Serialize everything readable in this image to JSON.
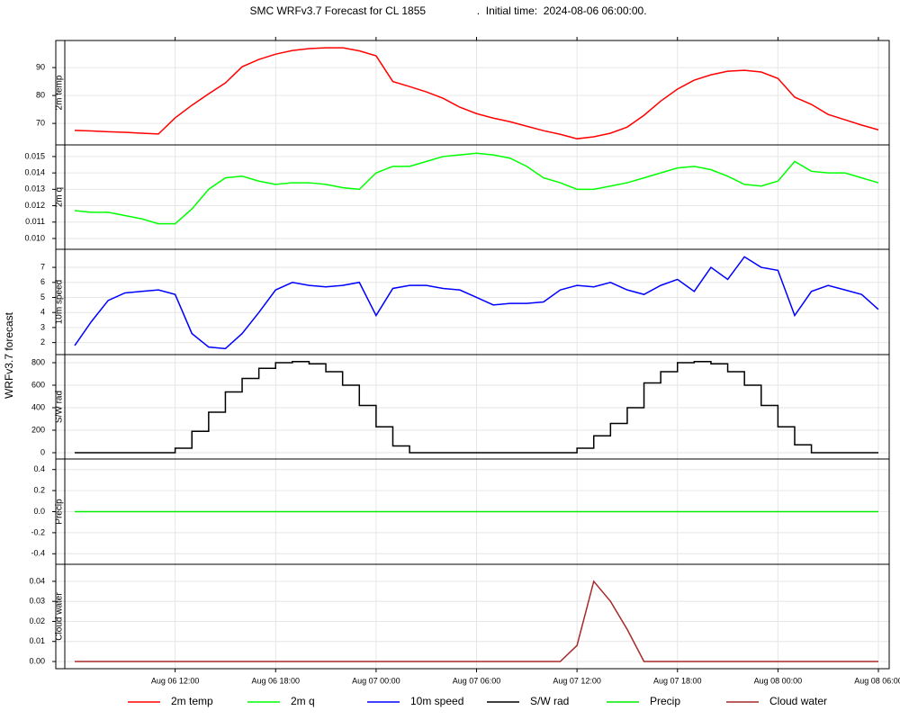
{
  "title": "SMC WRFv3.7 Forecast for CL 1855                 .  Initial time:  2024-08-06 06:00:00.",
  "ylabel": "WRFv3.7 forecast",
  "chart_data": {
    "type": "line",
    "grid": true,
    "xlim": [
      "Aug 06 06:00",
      "Aug 08 06:00"
    ],
    "xticks": [
      "Aug 06 12:00",
      "Aug 06 18:00",
      "Aug 07 00:00",
      "Aug 07 06:00",
      "Aug 07 12:00",
      "Aug 07 18:00",
      "Aug 08 00:00",
      "Aug 08 06:00"
    ],
    "x": [
      "Aug 06 06:00",
      "Aug 06 07:00",
      "Aug 06 08:00",
      "Aug 06 09:00",
      "Aug 06 10:00",
      "Aug 06 11:00",
      "Aug 06 12:00",
      "Aug 06 13:00",
      "Aug 06 14:00",
      "Aug 06 15:00",
      "Aug 06 16:00",
      "Aug 06 17:00",
      "Aug 06 18:00",
      "Aug 06 19:00",
      "Aug 06 20:00",
      "Aug 06 21:00",
      "Aug 06 22:00",
      "Aug 06 23:00",
      "Aug 07 00:00",
      "Aug 07 01:00",
      "Aug 07 02:00",
      "Aug 07 03:00",
      "Aug 07 04:00",
      "Aug 07 05:00",
      "Aug 07 06:00",
      "Aug 07 07:00",
      "Aug 07 08:00",
      "Aug 07 09:00",
      "Aug 07 10:00",
      "Aug 07 11:00",
      "Aug 07 12:00",
      "Aug 07 13:00",
      "Aug 07 14:00",
      "Aug 07 15:00",
      "Aug 07 16:00",
      "Aug 07 17:00",
      "Aug 07 18:00",
      "Aug 07 19:00",
      "Aug 07 20:00",
      "Aug 07 21:00",
      "Aug 07 22:00",
      "Aug 07 23:00",
      "Aug 08 00:00",
      "Aug 08 01:00",
      "Aug 08 02:00",
      "Aug 08 03:00",
      "Aug 08 04:00",
      "Aug 08 05:00",
      "Aug 08 06:00"
    ],
    "panels": [
      {
        "ylabel": "2m temp",
        "ylim": [
          62.3,
          99.7
        ],
        "yticks": [
          70,
          80,
          90
        ],
        "series": [
          {
            "name": "2m temp",
            "color": "#ff0000",
            "values": [
              67.5,
              67.3,
              67.0,
              66.8,
              66.5,
              66.2,
              72.0,
              76.5,
              80.6,
              84.5,
              90.3,
              92.9,
              94.8,
              96.1,
              96.8,
              97.1,
              97.1,
              96.0,
              94.2,
              85.0,
              83.2,
              81.3,
              79.0,
              75.8,
              73.5,
              71.9,
              70.6,
              69.0,
              67.4,
              66.1,
              64.5,
              65.2,
              66.5,
              68.7,
              72.9,
              78.0,
              82.3,
              85.5,
              87.4,
              88.7,
              89.0,
              88.4,
              86.1,
              79.4,
              76.8,
              73.2,
              71.3,
              69.4,
              67.7
            ]
          }
        ]
      },
      {
        "ylabel": "2m q",
        "ylim": [
          0.00934,
          0.01571
        ],
        "yticks": [
          {
            "value": 0.01,
            "label": "0.010"
          },
          {
            "value": 0.011,
            "label": "0.011"
          },
          {
            "value": 0.012,
            "label": "0.012"
          },
          {
            "value": 0.013,
            "label": "0.013"
          },
          {
            "value": 0.014,
            "label": "0.014"
          },
          {
            "value": 0.015,
            "label": "0.015"
          }
        ],
        "series": [
          {
            "name": "2m q",
            "color": "#00ff00",
            "values": [
              0.0117,
              0.0116,
              0.0116,
              0.0114,
              0.0112,
              0.0109,
              0.0109,
              0.0118,
              0.013,
              0.0137,
              0.0138,
              0.0135,
              0.0133,
              0.0134,
              0.0134,
              0.0133,
              0.0131,
              0.013,
              0.014,
              0.0144,
              0.0144,
              0.0147,
              0.015,
              0.0151,
              0.0152,
              0.0151,
              0.0149,
              0.0144,
              0.0137,
              0.0134,
              0.013,
              0.013,
              0.0132,
              0.0134,
              0.0137,
              0.014,
              0.0143,
              0.0144,
              0.0142,
              0.0138,
              0.0133,
              0.0132,
              0.0135,
              0.0147,
              0.0141,
              0.014,
              0.014,
              0.0137,
              0.0134
            ]
          }
        ]
      },
      {
        "ylabel": "10m speed",
        "ylim": [
          1.2,
          8.2
        ],
        "yticks": [
          2,
          3,
          4,
          5,
          6,
          7
        ],
        "series": [
          {
            "name": "10m speed",
            "color": "#0000ff",
            "values": [
              1.8,
              3.4,
              4.8,
              5.3,
              5.4,
              5.5,
              5.2,
              2.6,
              1.7,
              1.6,
              2.6,
              4.0,
              5.5,
              6.0,
              5.8,
              5.7,
              5.8,
              6.0,
              3.8,
              5.6,
              5.8,
              5.8,
              5.6,
              5.5,
              5.0,
              4.5,
              4.6,
              4.6,
              4.7,
              5.5,
              5.8,
              5.7,
              6.0,
              5.5,
              5.2,
              5.8,
              6.2,
              5.4,
              7.0,
              6.2,
              7.7,
              7.0,
              6.8,
              3.8,
              5.4,
              5.8,
              5.5,
              5.2,
              4.2
            ]
          }
        ]
      },
      {
        "ylabel": "S/W rad",
        "ylim": [
          -56,
          872
        ],
        "yticks": [
          0,
          200,
          400,
          600,
          800
        ],
        "series": [
          {
            "name": "S/W rad",
            "color": "#000000",
            "step": true,
            "values": [
              0,
              0,
              0,
              0,
              0,
              0,
              40,
              190,
              360,
              540,
              660,
              750,
              800,
              810,
              790,
              720,
              600,
              420,
              230,
              60,
              0,
              0,
              0,
              0,
              0,
              0,
              0,
              0,
              0,
              0,
              40,
              150,
              260,
              400,
              620,
              720,
              800,
              810,
              790,
              720,
              600,
              420,
              230,
              70,
              0,
              0,
              0,
              0,
              0
            ]
          }
        ]
      },
      {
        "ylabel": "Precip",
        "ylim": [
          -0.5,
          0.5
        ],
        "yticks": [
          -0.4,
          -0.2,
          {
            "value": 0,
            "label": "0.0"
          },
          0.2,
          0.4
        ],
        "series": [
          {
            "name": "Precip",
            "color": "#00ee00",
            "values": [
              0,
              0,
              0,
              0,
              0,
              0,
              0,
              0,
              0,
              0,
              0,
              0,
              0,
              0,
              0,
              0,
              0,
              0,
              0,
              0,
              0,
              0,
              0,
              0,
              0,
              0,
              0,
              0,
              0,
              0,
              0,
              0,
              0,
              0,
              0,
              0,
              0,
              0,
              0,
              0,
              0,
              0,
              0,
              0,
              0,
              0,
              0,
              0,
              0
            ]
          }
        ]
      },
      {
        "ylabel": "Cloud water",
        "ylim": [
          -0.0036,
          0.0485
        ],
        "yticks": [
          {
            "value": 0,
            "label": "0.00"
          },
          0.01,
          0.02,
          0.03,
          0.04
        ],
        "series": [
          {
            "name": "Cloud water",
            "color": "#a52a2a",
            "values": [
              0,
              0,
              0,
              0,
              0,
              0,
              0,
              0,
              0,
              0,
              0,
              0,
              0,
              0,
              0,
              0,
              0,
              0,
              0,
              0,
              0,
              0,
              0,
              0,
              0,
              0,
              0,
              0,
              0,
              0,
              0.008,
              0.04,
              0.03,
              0.016,
              0,
              0,
              0,
              0,
              0,
              0,
              0,
              0,
              0,
              0,
              0,
              0,
              0,
              0,
              0
            ]
          }
        ]
      }
    ]
  }
}
